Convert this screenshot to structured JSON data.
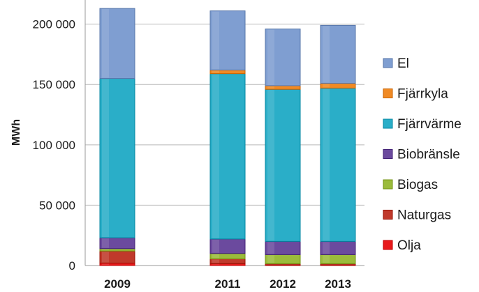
{
  "chart_data": {
    "type": "bar",
    "stacked": true,
    "title": "",
    "xlabel": "",
    "ylabel": "MWh",
    "ylim": [
      0,
      220000
    ],
    "yticks": [
      0,
      50000,
      100000,
      150000,
      200000
    ],
    "ytick_labels": [
      "0",
      "50 000",
      "100 000",
      "150 000",
      "200 000"
    ],
    "categories": [
      "2009",
      "2011",
      "2012",
      "2013"
    ],
    "grid": true,
    "legend_position": "right",
    "series": [
      {
        "name": "Olja",
        "color": "#e8191b",
        "values": [
          2000,
          1500,
          500,
          500
        ]
      },
      {
        "name": "Naturgas",
        "color": "#c0392b",
        "values": [
          10000,
          4000,
          1000,
          1000
        ]
      },
      {
        "name": "Biogas",
        "color": "#9bbb3b",
        "values": [
          2000,
          4500,
          7500,
          7500
        ]
      },
      {
        "name": "Biobränsle",
        "color": "#6b4a9e",
        "values": [
          9000,
          12000,
          11000,
          11000
        ]
      },
      {
        "name": "Fjärrvärme",
        "color": "#2aaec8",
        "values": [
          132000,
          137000,
          126000,
          127000
        ]
      },
      {
        "name": "Fjärrkyla",
        "color": "#f08a24",
        "values": [
          0,
          3000,
          3000,
          4000
        ]
      },
      {
        "name": "El",
        "color": "#7f9ed1",
        "values": [
          58000,
          49000,
          47000,
          48000
        ]
      }
    ]
  }
}
